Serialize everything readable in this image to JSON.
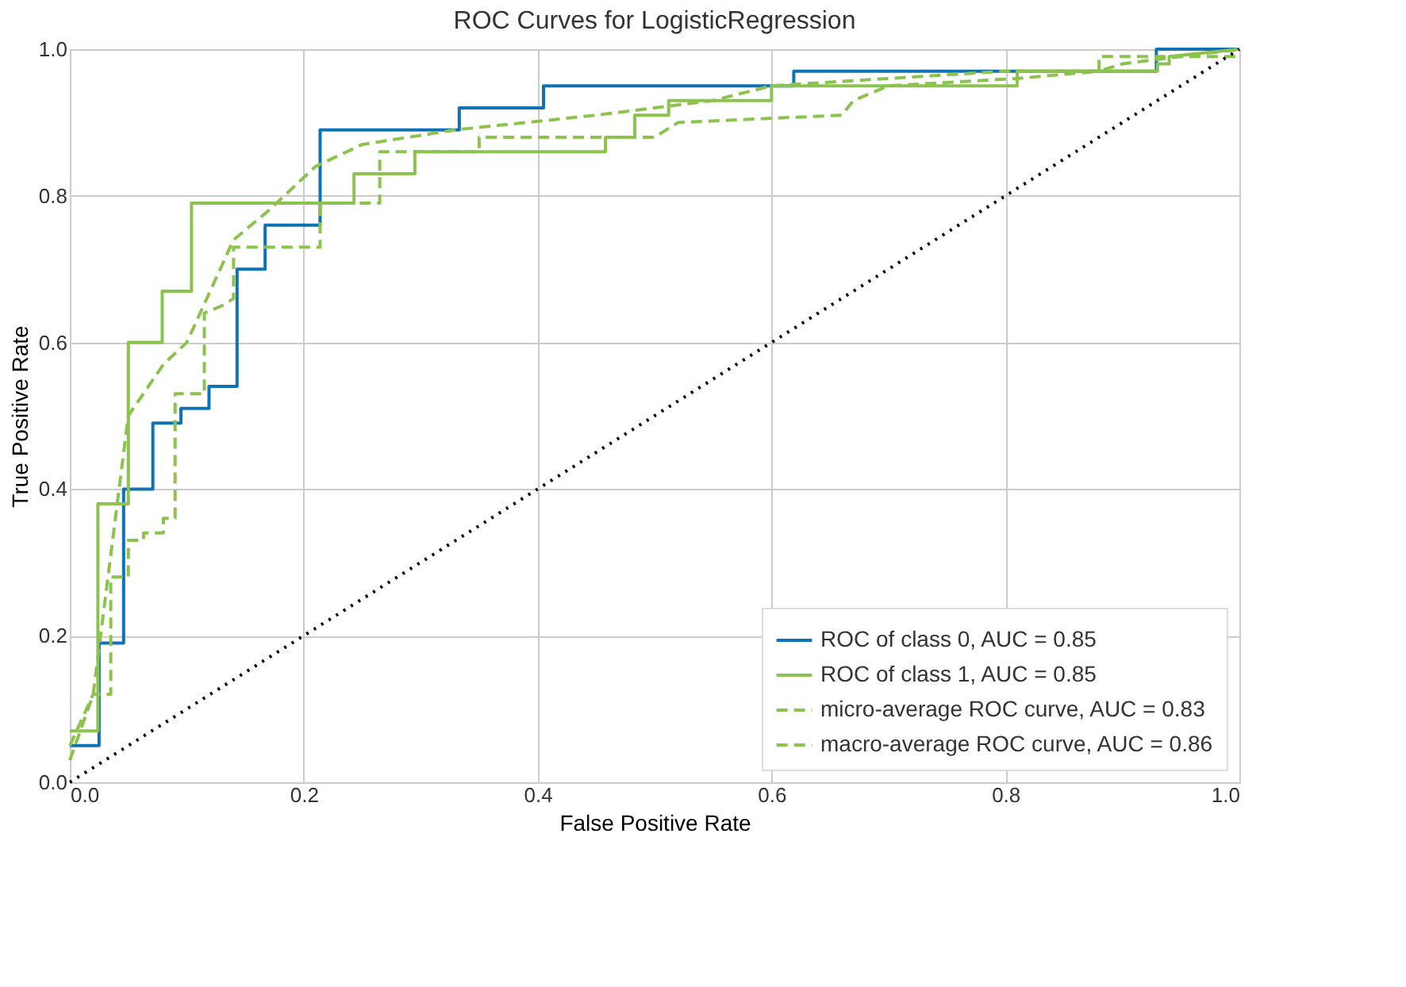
{
  "chart_data": {
    "type": "line",
    "title": "ROC Curves for LogisticRegression",
    "xlabel": "False Positive Rate",
    "ylabel": "True Positive Rate",
    "xlim": [
      0,
      1
    ],
    "ylim": [
      0,
      1
    ],
    "xticks": [
      {
        "value": 0,
        "label": "0.0"
      },
      0.2,
      0.4,
      0.6,
      0.8,
      {
        "value": 1,
        "label": "1.0"
      }
    ],
    "yticks": [
      {
        "value": 0,
        "label": "0.0"
      },
      0.2,
      0.4,
      0.6,
      0.8,
      {
        "value": 1,
        "label": "1.0"
      }
    ],
    "grid": true,
    "legend": "bottom right",
    "marker": "none",
    "series": [
      {
        "name": "ROC of class 0, AUC = 0.85",
        "color": "#0f72b5",
        "line_style": "solid",
        "x": [
          0,
          0.025,
          0.025,
          0.046,
          0.046,
          0.071,
          0.071,
          0.095,
          0.095,
          0.119,
          0.119,
          0.143,
          0.143,
          0.167,
          0.167,
          0.214,
          0.214,
          0.333,
          0.333,
          0.405,
          0.405,
          0.619,
          0.619,
          0.929,
          0.929,
          1.0
        ],
        "values": [
          0.05,
          0.05,
          0.19,
          0.19,
          0.4,
          0.4,
          0.49,
          0.49,
          0.51,
          0.51,
          0.54,
          0.54,
          0.7,
          0.7,
          0.76,
          0.76,
          0.89,
          0.89,
          0.92,
          0.92,
          0.95,
          0.95,
          0.97,
          0.97,
          1.0,
          1.0
        ]
      },
      {
        "name": "ROC of class 1, AUC = 0.85",
        "color": "#8cc24e",
        "line_style": "solid",
        "x": [
          0,
          0.024,
          0.024,
          0.05,
          0.05,
          0.079,
          0.079,
          0.104,
          0.104,
          0.243,
          0.243,
          0.295,
          0.295,
          0.458,
          0.458,
          0.483,
          0.483,
          0.512,
          0.512,
          0.6,
          0.6,
          0.81,
          0.81,
          0.93,
          0.93,
          0.94,
          0.94,
          1.0
        ],
        "values": [
          0.07,
          0.07,
          0.38,
          0.38,
          0.6,
          0.6,
          0.67,
          0.67,
          0.79,
          0.79,
          0.83,
          0.83,
          0.86,
          0.86,
          0.88,
          0.88,
          0.91,
          0.91,
          0.93,
          0.93,
          0.95,
          0.95,
          0.97,
          0.97,
          0.98,
          0.98,
          0.99,
          1.0
        ]
      },
      {
        "name": "micro-average ROC curve, AUC = 0.83",
        "color": "#8cc24e",
        "line_style": "dashed",
        "x": [
          0,
          0.02,
          0.05,
          0.08,
          0.1,
          0.14,
          0.17,
          0.21,
          0.25,
          0.33,
          0.45,
          0.55,
          0.6,
          0.7,
          0.8,
          0.88,
          0.9,
          0.95,
          1.0
        ],
        "values": [
          0.03,
          0.12,
          0.5,
          0.57,
          0.6,
          0.74,
          0.78,
          0.84,
          0.87,
          0.89,
          0.91,
          0.93,
          0.95,
          0.96,
          0.97,
          0.97,
          0.98,
          0.99,
          1.0
        ]
      },
      {
        "name": "macro-average ROC curve, AUC = 0.86",
        "color": "#8cc24e",
        "line_style": "dashed",
        "x": [
          0,
          0.02,
          0.035,
          0.035,
          0.05,
          0.05,
          0.063,
          0.063,
          0.08,
          0.08,
          0.09,
          0.09,
          0.115,
          0.115,
          0.13,
          0.14,
          0.14,
          0.214,
          0.214,
          0.265,
          0.265,
          0.35,
          0.35,
          0.5,
          0.52,
          0.66,
          0.67,
          0.7,
          0.81,
          0.88,
          0.88,
          1.0
        ],
        "values": [
          0.05,
          0.12,
          0.12,
          0.28,
          0.28,
          0.33,
          0.33,
          0.34,
          0.34,
          0.36,
          0.36,
          0.53,
          0.53,
          0.64,
          0.65,
          0.66,
          0.73,
          0.73,
          0.79,
          0.79,
          0.86,
          0.86,
          0.88,
          0.88,
          0.9,
          0.91,
          0.93,
          0.95,
          0.96,
          0.97,
          0.99,
          0.99
        ]
      },
      {
        "color": "#000000",
        "line_style": "dotted",
        "x": [
          0,
          1
        ],
        "values": [
          0,
          1
        ]
      }
    ]
  }
}
